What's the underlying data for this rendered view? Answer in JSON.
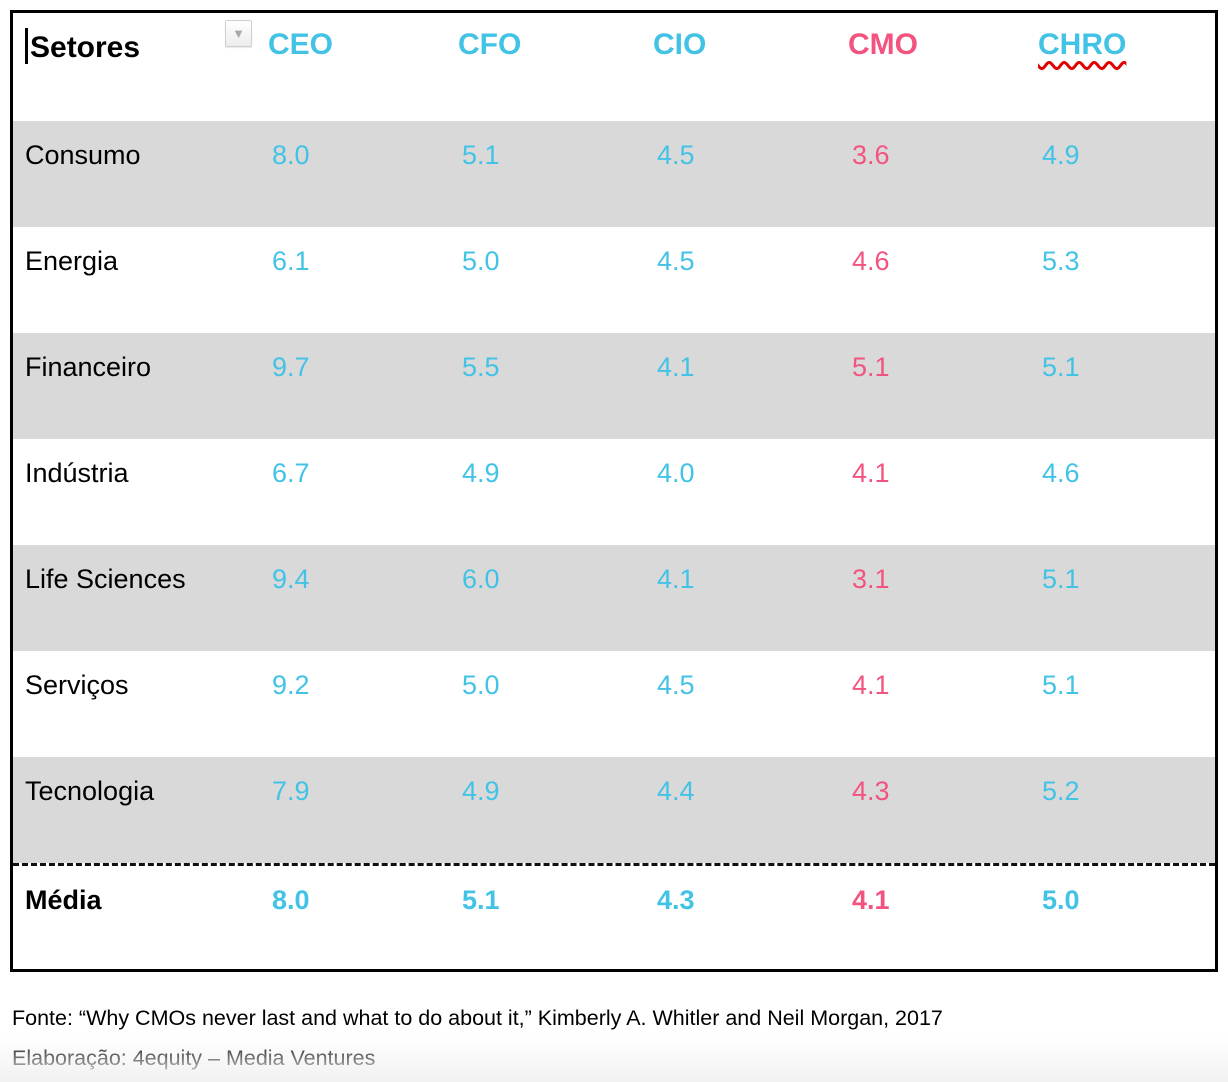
{
  "chart_data": {
    "type": "table",
    "row_header_label": "Setores",
    "columns": [
      "CEO",
      "CFO",
      "CIO",
      "CMO",
      "CHRO"
    ],
    "highlight_column": "CMO",
    "rows": [
      {
        "sector": "Consumo",
        "values": [
          "8.0",
          "5.1",
          "4.5",
          "3.6",
          "4.9"
        ]
      },
      {
        "sector": "Energia",
        "values": [
          "6.1",
          "5.0",
          "4.5",
          "4.6",
          "5.3"
        ]
      },
      {
        "sector": "Financeiro",
        "values": [
          "9.7",
          "5.5",
          "4.1",
          "5.1",
          "5.1"
        ]
      },
      {
        "sector": "Indústria",
        "values": [
          "6.7",
          "4.9",
          "4.0",
          "4.1",
          "4.6"
        ]
      },
      {
        "sector": "Life Sciences",
        "values": [
          "9.4",
          "6.0",
          "4.1",
          "3.1",
          "5.1"
        ]
      },
      {
        "sector": "Serviços",
        "values": [
          "9.2",
          "5.0",
          "4.5",
          "4.1",
          "5.1"
        ]
      },
      {
        "sector": "Tecnologia",
        "values": [
          "7.9",
          "4.9",
          "4.4",
          "4.3",
          "5.2"
        ]
      }
    ],
    "summary_row": {
      "sector": "Média",
      "values": [
        "8.0",
        "5.1",
        "4.3",
        "4.1",
        "5.0"
      ]
    }
  },
  "footer": {
    "source": "Fonte: “Why CMOs never last and what to do about it,” Kimberly A. Whitler and Neil Morgan, 2017",
    "elaboration": "Elaboração: 4equity – Media Ventures"
  },
  "icons": {
    "dropdown_arrow": "▼"
  },
  "colors": {
    "accent_cyan": "#42c3e6",
    "accent_pink": "#f2547f",
    "row_gray": "#d9d9d9",
    "squiggle_red": "#e00000"
  }
}
